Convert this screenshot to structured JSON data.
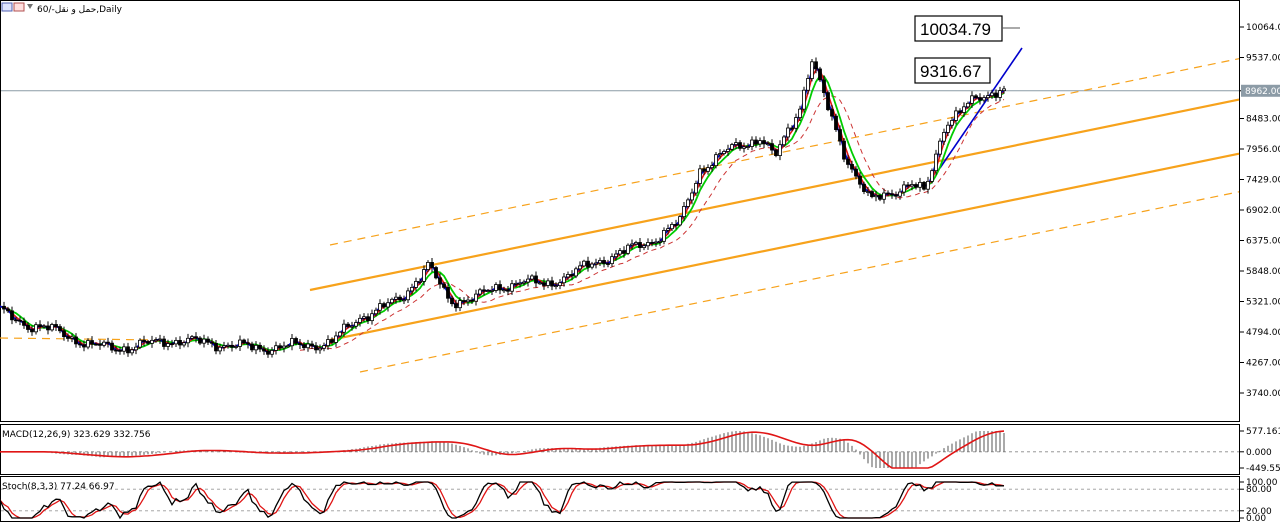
{
  "window": {
    "title": "حمل و نقل-/60,Daily"
  },
  "colors": {
    "channel": "#f7a21b",
    "ma_blue": "#0000cc",
    "ma_red": "#e01515",
    "ma_green": "#00cc00",
    "ma_dashed": "#cc3333",
    "current_price_line": "#8c9ba6",
    "macd_signal": "#e01515",
    "stoch_main": "#000000",
    "stoch_signal": "#e01515"
  },
  "annotations": {
    "price_box_1": "10034.79",
    "price_box_2": "9316.67"
  },
  "chart_data": [
    {
      "type": "candlestick",
      "title": "",
      "y_ticks": [
        "10064.00",
        "9537.00",
        "8962.00",
        "8483.00",
        "7956.00",
        "7429.00",
        "6902.00",
        "6375.00",
        "5848.00",
        "5321.00",
        "4794.00",
        "4267.00",
        "3740.00"
      ],
      "current_price": "8962.00",
      "ylim": [
        3500,
        10250
      ],
      "ohlc_approx": [
        [
          5150,
          5250,
          4950,
          5050
        ],
        [
          5050,
          5150,
          4850,
          4900
        ],
        [
          4900,
          5000,
          4750,
          4850
        ],
        [
          4850,
          4950,
          4600,
          4700
        ],
        [
          4700,
          4850,
          4550,
          4800
        ],
        [
          4800,
          4900,
          4650,
          4700
        ],
        [
          4700,
          4750,
          4500,
          4550
        ],
        [
          4550,
          4650,
          4450,
          4600
        ],
        [
          4600,
          4700,
          4500,
          4550
        ],
        [
          4550,
          4650,
          4450,
          4600
        ],
        [
          4600,
          4800,
          4550,
          4750
        ],
        [
          4750,
          4850,
          4650,
          4700
        ],
        [
          4700,
          4800,
          4550,
          4600
        ],
        [
          4600,
          4700,
          4500,
          4650
        ],
        [
          4650,
          4750,
          4550,
          4600
        ],
        [
          4600,
          4650,
          4450,
          4500
        ],
        [
          4500,
          4600,
          4400,
          4550
        ],
        [
          4550,
          4650,
          4500,
          4600
        ],
        [
          4600,
          4650,
          4500,
          4550
        ],
        [
          4550,
          4650,
          4500,
          4600
        ],
        [
          4600,
          5100,
          4550,
          5050
        ],
        [
          5050,
          5200,
          4950,
          5150
        ],
        [
          5150,
          5300,
          5050,
          5250
        ],
        [
          5250,
          5400,
          5150,
          5350
        ],
        [
          5350,
          5700,
          5300,
          5650
        ],
        [
          5650,
          6100,
          5550,
          6000
        ],
        [
          6000,
          6150,
          5400,
          5500
        ],
        [
          5500,
          5650,
          5100,
          5250
        ],
        [
          5250,
          5500,
          5200,
          5450
        ],
        [
          5450,
          5550,
          5350,
          5400
        ],
        [
          5400,
          5650,
          5350,
          5600
        ],
        [
          5600,
          5800,
          5500,
          5750
        ],
        [
          5750,
          6000,
          5650,
          5900
        ],
        [
          5900,
          5950,
          5700,
          5800
        ],
        [
          5800,
          5900,
          5600,
          5700
        ],
        [
          5700,
          5850,
          5650,
          5800
        ],
        [
          5800,
          6050,
          5750,
          6000
        ],
        [
          6000,
          6200,
          5900,
          6150
        ],
        [
          6150,
          6500,
          6100,
          6450
        ],
        [
          6450,
          6550,
          6300,
          6350
        ],
        [
          6350,
          6450,
          6250,
          6400
        ],
        [
          6400,
          6800,
          6350,
          6700
        ],
        [
          6700,
          7500,
          6650,
          7400
        ],
        [
          7400,
          7900,
          7300,
          7800
        ],
        [
          7800,
          8400,
          7700,
          8300
        ],
        [
          8300,
          8500,
          8050,
          8100
        ],
        [
          8100,
          8350,
          8000,
          8250
        ],
        [
          8250,
          8500,
          8150,
          8400
        ],
        [
          8400,
          8450,
          7950,
          8000
        ],
        [
          8000,
          8050,
          7700,
          7850
        ],
        [
          7850,
          8400,
          7800,
          8300
        ],
        [
          8300,
          9300,
          8250,
          9200
        ],
        [
          9200,
          9900,
          9100,
          9650
        ],
        [
          9650,
          9700,
          8900,
          9000
        ],
        [
          9000,
          9100,
          8400,
          8500
        ],
        [
          8500,
          8600,
          7900,
          8000
        ],
        [
          8000,
          8050,
          7300,
          7400
        ],
        [
          7400,
          7500,
          6900,
          7000
        ],
        [
          7000,
          7300,
          6850,
          7200
        ],
        [
          7200,
          7350,
          7000,
          7100
        ],
        [
          7100,
          7350,
          7050,
          7300
        ],
        [
          7300,
          7450,
          7100,
          7200
        ],
        [
          7200,
          7800,
          7150,
          7700
        ],
        [
          7700,
          8600,
          7650,
          8500
        ],
        [
          8500,
          8750,
          8350,
          8650
        ],
        [
          8650,
          9100,
          8600,
          9000
        ],
        [
          9000,
          9150,
          8700,
          8800
        ],
        [
          8800,
          9200,
          8750,
          9050
        ],
        [
          9050,
          9100,
          8850,
          8950
        ]
      ]
    },
    {
      "type": "line",
      "title": "MACD(12,26,9) 323.629 332.756",
      "y_ticks": [
        "577.161",
        "0.000",
        "-449.558"
      ],
      "ylim": [
        -449.558,
        577.161
      ]
    },
    {
      "type": "line",
      "title": "Stoch(8,3,3) 77.24 66.97",
      "y_ticks": [
        "100.00",
        "80.00",
        "20.00",
        "0.00"
      ],
      "ylim": [
        0,
        100
      ]
    }
  ]
}
